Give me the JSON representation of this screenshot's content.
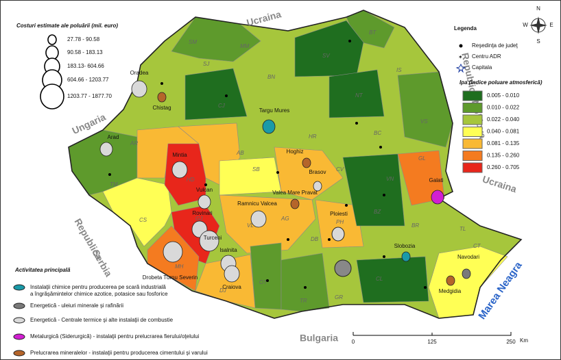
{
  "cost_legend": {
    "title": "Costuri estimate ale poluării (mil. euro)",
    "classes": [
      "27.78 - 90.58",
      "90.58 - 183.13",
      "183.13- 604.66",
      "604.66 - 1203.77",
      "1203.77 - 1877.70"
    ]
  },
  "legend": {
    "title": "Legenda",
    "symbols": [
      "Reşedinţa de judeţ",
      "Centru ADR",
      "Capitala"
    ],
    "ipa_title": "Ipa (Indice poluare atmosferică)",
    "ipa_classes": [
      {
        "label": "0.005 - 0.010",
        "color": "#1f6e1f"
      },
      {
        "label": "0.010 - 0.022",
        "color": "#5e9a2c"
      },
      {
        "label": "0.022 - 0.040",
        "color": "#a6c63c"
      },
      {
        "label": "0.040 - 0.081",
        "color": "#ffff55"
      },
      {
        "label": "0.081 - 0.135",
        "color": "#f9b934"
      },
      {
        "label": "0.135 - 0.260",
        "color": "#f47b20"
      },
      {
        "label": "0.260 - 0.705",
        "color": "#e8261b"
      }
    ]
  },
  "activity_legend": {
    "title": "Activitatea principală",
    "items": [
      {
        "label": "Instalaţii chimice pentru producerea pe scară industrială\na îngrăşămintelor chimice azotice, potasice sau fosforice",
        "color": "#1a9aa8"
      },
      {
        "label": "Energetică - uleiuri minerale şi rafinării",
        "color": "#7a7a7a"
      },
      {
        "label": "Energetică - Centrale termice şi alte instalaţii de combustie",
        "color": "#d9d9d9"
      },
      {
        "label": "Metalurgică (Siderurgică) - instalaţii pentru prelucrarea fierului/oţelului",
        "color": "#d21fd2"
      },
      {
        "label": "Prelucrarea mineralelor - instalaţii pentru producerea cimentului şi varului",
        "color": "#b5652a"
      }
    ]
  },
  "neighbors": [
    "Ucraina",
    "Ungaria",
    "Republica Moldova",
    "Ucraina",
    "Republica",
    "Serbia",
    "Bulgaria",
    "Marea Neagra"
  ],
  "compass": [
    "N",
    "E",
    "S",
    "W"
  ],
  "scale_bar": {
    "labels": [
      "0",
      "125",
      "250"
    ],
    "unit": "Km"
  },
  "counties": [
    "SM",
    "MM",
    "BT",
    "SV",
    "BN",
    "IS",
    "SJ",
    "CJ",
    "NT",
    "HR",
    "BC",
    "VS",
    "AR",
    "AB",
    "TM",
    "HD",
    "SB",
    "CV",
    "GL",
    "VN",
    "BZ",
    "BR",
    "TL",
    "CS",
    "VL",
    "AG",
    "PH",
    "GJ",
    "MH",
    "DB",
    "OT",
    "DJ",
    "TR",
    "GR",
    "CL",
    "CT"
  ],
  "sites": [
    {
      "label": "Oradea",
      "activity": 2,
      "cost": 2
    },
    {
      "label": "Chistag",
      "activity": 4,
      "cost": 0
    },
    {
      "label": "Targu Mures",
      "activity": 0,
      "cost": 1
    },
    {
      "label": "Arad",
      "activity": 2,
      "cost": 1
    },
    {
      "label": "Mintia",
      "activity": 2,
      "cost": 2
    },
    {
      "label": "Hoghiz",
      "activity": 4,
      "cost": 0
    },
    {
      "label": "Brasov",
      "activity": 2,
      "cost": 0
    },
    {
      "label": "Valea Mare Pravat",
      "activity": 4,
      "cost": 0
    },
    {
      "label": "Galati",
      "activity": 3,
      "cost": 1
    },
    {
      "label": "Vulcan",
      "activity": 2,
      "cost": 1
    },
    {
      "label": "Ramnicu Valcea",
      "activity": 2,
      "cost": 2
    },
    {
      "label": "Ploiesti",
      "activity": 1,
      "cost": 0
    },
    {
      "label": "Rovinari",
      "activity": 2,
      "cost": 2
    },
    {
      "label": "Turceni",
      "activity": 2,
      "cost": 3
    },
    {
      "label": "Drobeta Turnu Severin",
      "activity": 2,
      "cost": 3
    },
    {
      "label": "Isalnita",
      "activity": 2,
      "cost": 2
    },
    {
      "label": "Craiova",
      "activity": 2,
      "cost": 2
    },
    {
      "label": "Slobozia",
      "activity": 0,
      "cost": 0
    },
    {
      "label": "Navodari",
      "activity": 1,
      "cost": 0
    },
    {
      "label": "Medgidia",
      "activity": 4,
      "cost": 0
    }
  ]
}
